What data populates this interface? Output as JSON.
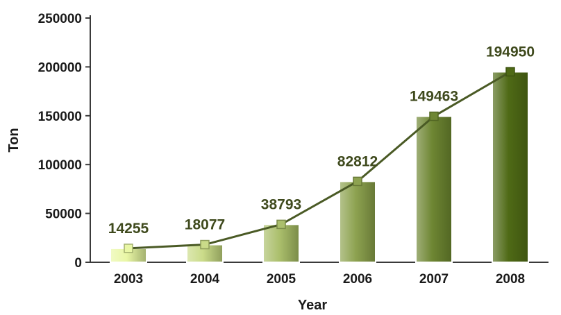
{
  "chart_data": {
    "type": "bar",
    "categories": [
      "2003",
      "2004",
      "2005",
      "2006",
      "2007",
      "2008"
    ],
    "values": [
      14255,
      18077,
      38793,
      82812,
      149463,
      194950
    ],
    "data_labels": [
      "14255",
      "18077",
      "38793",
      "82812",
      "149463",
      "194950"
    ],
    "overlay": "line connecting bar tops with square markers",
    "xlabel": "Year",
    "ylabel": "Ton",
    "ylim": [
      0,
      250000
    ],
    "yticks": [
      "0",
      "50000",
      "100000",
      "150000",
      "200000",
      "250000"
    ],
    "grid": false,
    "legend": "none",
    "colors": {
      "bar_gradient_start": "#e9f7a6",
      "bar_gradient_end": "#4f6a16",
      "line": "#4a5a25",
      "axis": "#3a3a3a",
      "label": "#3f4a1d"
    }
  }
}
